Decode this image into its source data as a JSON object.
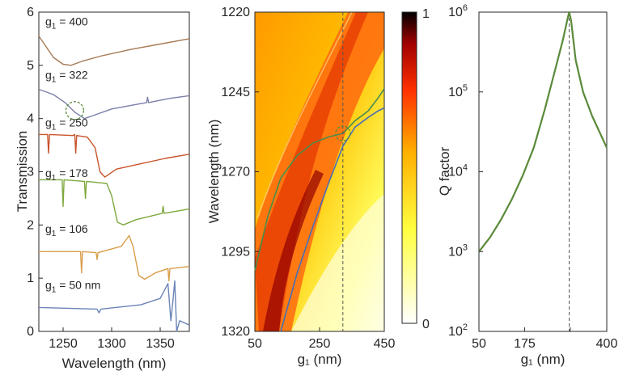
{
  "chart_data": [
    {
      "panel": "left",
      "type": "line",
      "xlabel": "Wavelength (nm)",
      "ylabel": "Transmission",
      "xlim": [
        1225,
        1380
      ],
      "ylim": [
        0,
        6
      ],
      "x_ticks": [
        1250,
        1300,
        1350
      ],
      "y_ticks": [
        0,
        1,
        2,
        3,
        4,
        5,
        6
      ],
      "curve_labels": [
        {
          "g": "g",
          "sub": "1",
          "text": " = 400",
          "color": "#ffffff"
        },
        {
          "g": "g",
          "sub": "1",
          "text": " = 322",
          "color": "#ffffff"
        },
        {
          "g": "g",
          "sub": "1",
          "text": " = 250",
          "color": "#ffffff"
        },
        {
          "g": "g",
          "sub": "1",
          "text": " = 178",
          "color": "#ffffff"
        },
        {
          "g": "g",
          "sub": "1",
          "text": " = 106",
          "color": "#ffffff"
        },
        {
          "g": "g",
          "sub": "1",
          "text": " = 50 nm",
          "color": "#ffffff"
        }
      ],
      "series": [
        {
          "color": "#a77a55",
          "points": [
            [
              1225,
              5.55
            ],
            [
              1240,
              5.15
            ],
            [
              1250,
              5.02
            ],
            [
              1258,
              5.0
            ],
            [
              1270,
              5.08
            ],
            [
              1290,
              5.18
            ],
            [
              1320,
              5.3
            ],
            [
              1350,
              5.4
            ],
            [
              1380,
              5.5
            ]
          ]
        },
        {
          "color": "#7b7ea8",
          "points": [
            [
              1225,
              4.55
            ],
            [
              1240,
              4.45
            ],
            [
              1252,
              4.3
            ],
            [
              1262,
              4.12
            ],
            [
              1272,
              4.0
            ],
            [
              1280,
              4.05
            ],
            [
              1300,
              4.18
            ],
            [
              1330,
              4.28
            ],
            [
              1336,
              4.3
            ],
            [
              1337,
              4.4
            ],
            [
              1338,
              4.3
            ],
            [
              1360,
              4.38
            ],
            [
              1380,
              4.43
            ]
          ]
        },
        {
          "color": "#c9542a",
          "points": [
            [
              1225,
              3.7
            ],
            [
              1234,
              3.7
            ],
            [
              1235,
              3.35
            ],
            [
              1236,
              3.7
            ],
            [
              1260,
              3.68
            ],
            [
              1262,
              3.7
            ],
            [
              1263,
              3.35
            ],
            [
              1264,
              3.68
            ],
            [
              1275,
              3.65
            ],
            [
              1283,
              3.45
            ],
            [
              1288,
              3.0
            ],
            [
              1293,
              2.9
            ],
            [
              1305,
              3.05
            ],
            [
              1330,
              3.15
            ],
            [
              1355,
              3.25
            ],
            [
              1380,
              3.33
            ]
          ]
        },
        {
          "color": "#7ea83d",
          "points": [
            [
              1225,
              2.85
            ],
            [
              1249,
              2.85
            ],
            [
              1250,
              2.35
            ],
            [
              1251,
              2.85
            ],
            [
              1272,
              2.82
            ],
            [
              1273,
              2.5
            ],
            [
              1274,
              2.82
            ],
            [
              1295,
              2.78
            ],
            [
              1300,
              2.55
            ],
            [
              1306,
              2.05
            ],
            [
              1312,
              2.0
            ],
            [
              1325,
              2.1
            ],
            [
              1352,
              2.22
            ],
            [
              1353,
              2.35
            ],
            [
              1354,
              2.22
            ],
            [
              1380,
              2.3
            ]
          ]
        },
        {
          "color": "#d99e4a",
          "points": [
            [
              1225,
              1.5
            ],
            [
              1268,
              1.5
            ],
            [
              1269,
              1.1
            ],
            [
              1270,
              1.5
            ],
            [
              1284,
              1.48
            ],
            [
              1285,
              1.35
            ],
            [
              1286,
              1.48
            ],
            [
              1310,
              1.6
            ],
            [
              1318,
              1.8
            ],
            [
              1322,
              1.6
            ],
            [
              1328,
              1.05
            ],
            [
              1334,
              0.98
            ],
            [
              1345,
              1.1
            ],
            [
              1358,
              1.18
            ],
            [
              1359,
              0.95
            ],
            [
              1360,
              1.18
            ],
            [
              1380,
              1.22
            ]
          ]
        },
        {
          "color": "#6a84b8",
          "points": [
            [
              1225,
              0.45
            ],
            [
              1285,
              0.42
            ],
            [
              1287,
              0.35
            ],
            [
              1289,
              0.42
            ],
            [
              1330,
              0.5
            ],
            [
              1350,
              0.62
            ],
            [
              1358,
              0.9
            ],
            [
              1361,
              0.2
            ],
            [
              1363,
              0.55
            ],
            [
              1365,
              0.95
            ],
            [
              1367,
              0.0
            ],
            [
              1370,
              0.2
            ],
            [
              1380,
              0.12
            ]
          ]
        }
      ],
      "annotations": [
        {
          "type": "dashed-circle",
          "x": 1262,
          "y": 4.15,
          "color": "#5a8a3a"
        }
      ]
    },
    {
      "panel": "middle",
      "type": "heatmap",
      "xlabel": "g₁ (nm)",
      "ylabel": "Wavelength (nm)",
      "xlim": [
        50,
        450
      ],
      "ylim": [
        1320,
        1220
      ],
      "x_ticks": [
        50,
        250,
        450
      ],
      "y_ticks": [
        1220,
        1245,
        1270,
        1295,
        1320
      ],
      "colorbar": {
        "min": 0,
        "max": 1,
        "colormap": "hot"
      },
      "series": [
        {
          "color": "#4a8c4a",
          "points": [
            [
              50,
              1301
            ],
            [
              90,
              1284
            ],
            [
              130,
              1272
            ],
            [
              180,
              1265
            ],
            [
              230,
              1261
            ],
            [
              280,
              1259
            ],
            [
              322,
              1258
            ],
            [
              360,
              1254
            ],
            [
              400,
              1251
            ],
            [
              430,
              1247
            ],
            [
              450,
              1244
            ]
          ]
        },
        {
          "color": "#4a6fb5",
          "points": [
            [
              130,
              1320
            ],
            [
              180,
              1302
            ],
            [
              230,
              1287
            ],
            [
              280,
              1273
            ],
            [
              322,
              1262
            ],
            [
              360,
              1256
            ],
            [
              400,
              1253
            ],
            [
              430,
              1251
            ],
            [
              450,
              1250
            ]
          ]
        }
      ],
      "vline": 322,
      "annotations": [
        {
          "type": "dashed-circle",
          "x": 322,
          "y": 1258,
          "color": "#5a8a3a"
        }
      ]
    },
    {
      "panel": "right",
      "type": "line",
      "xlabel": "g₁ (nm)",
      "ylabel": "Q factor",
      "xlim": [
        50,
        400
      ],
      "ylim": [
        100,
        1000000
      ],
      "yscale": "log",
      "x_ticks": [
        50,
        175,
        300,
        400
      ],
      "x_tick_labels": [
        "50",
        "175",
        "",
        "400"
      ],
      "y_ticks": [
        100,
        1000,
        10000,
        100000,
        1000000
      ],
      "series": [
        {
          "color": "#5a8a3a",
          "points": [
            [
              50,
              1000
            ],
            [
              80,
              1500
            ],
            [
              110,
              2500
            ],
            [
              140,
              4500
            ],
            [
              170,
              9000
            ],
            [
              200,
              20000
            ],
            [
              230,
              60000
            ],
            [
              260,
              200000
            ],
            [
              280,
              450000
            ],
            [
              292,
              800000
            ],
            [
              297,
              1000000
            ],
            [
              302,
              800000
            ],
            [
              315,
              250000
            ],
            [
              335,
              100000
            ],
            [
              360,
              50000
            ],
            [
              400,
              20000
            ]
          ]
        }
      ],
      "vline": 297
    }
  ]
}
